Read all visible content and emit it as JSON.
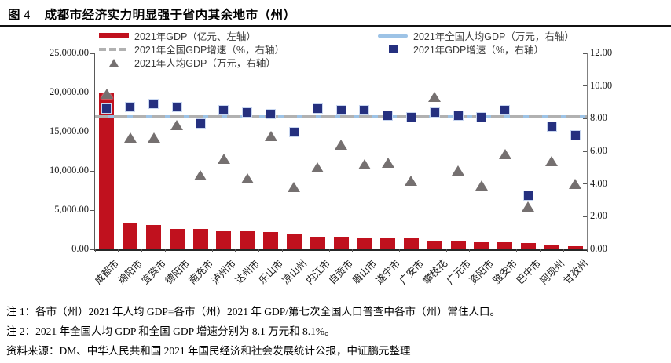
{
  "header": {
    "title_prefix": "图 4",
    "title": "成都市经济实力明显强于省内其余地市（州）"
  },
  "legend": {
    "left": [
      {
        "swatch": "bar",
        "label": "2021年GDP（亿元、左轴）"
      },
      {
        "swatch": "dashed",
        "label": "2021年全国GDP增速（%，右轴）"
      },
      {
        "swatch": "triangle",
        "label": "2021年人均GDP（万元，右轴）"
      }
    ],
    "right": [
      {
        "swatch": "line",
        "label": "2021年全国人均GDP（万元，右轴）"
      },
      {
        "swatch": "square",
        "label": "2021年GDP增速（%，右轴）"
      }
    ]
  },
  "chart_data": {
    "type": "bar",
    "title": "成都市经济实力明显强于省内其余地市（州）",
    "categories": [
      "成都市",
      "绵阳市",
      "宜宾市",
      "德阳市",
      "南充市",
      "泸州市",
      "达州市",
      "乐山市",
      "凉山州",
      "内江市",
      "自贡市",
      "眉山市",
      "遂宁市",
      "广安市",
      "攀枝花",
      "广元市",
      "资阳市",
      "雅安市",
      "巴中市",
      "阿坝州",
      "甘孜州"
    ],
    "series": [
      {
        "name": "2021年GDP（亿元、左轴）",
        "type": "bar",
        "axis": "left",
        "color": "#C0111E",
        "values": [
          19900,
          3350,
          3150,
          2650,
          2600,
          2400,
          2350,
          2200,
          1900,
          1620,
          1600,
          1550,
          1500,
          1420,
          1150,
          1100,
          920,
          900,
          760,
          460,
          440
        ]
      },
      {
        "name": "2021年GDP增速（%，右轴）",
        "type": "scatter-square",
        "axis": "right",
        "color": "#25307F",
        "values": [
          8.6,
          8.7,
          8.9,
          8.7,
          7.7,
          8.5,
          8.4,
          8.3,
          7.2,
          8.6,
          8.5,
          8.5,
          8.2,
          8.1,
          8.4,
          8.2,
          8.1,
          8.5,
          3.3,
          7.5,
          7.0
        ]
      },
      {
        "name": "2021年人均GDP（万元，右轴）",
        "type": "scatter-triangle",
        "axis": "right",
        "color": "#757070",
        "values": [
          9.5,
          6.8,
          6.8,
          7.6,
          4.5,
          5.5,
          4.3,
          6.9,
          3.8,
          5.0,
          6.4,
          5.2,
          5.3,
          4.2,
          9.3,
          4.8,
          3.9,
          5.8,
          2.6,
          5.4,
          4.0
        ]
      },
      {
        "name": "2021年全国人均GDP（万元，右轴）",
        "type": "hline",
        "axis": "right",
        "color": "#9DC3E6",
        "value": 8.1
      },
      {
        "name": "2021年全国GDP增速（%，右轴）",
        "type": "hline-dashed",
        "axis": "right",
        "color": "#B1B1B1",
        "value": 8.1
      }
    ],
    "left_axis": {
      "label": "",
      "min": 0,
      "max": 25000,
      "ticks": [
        "25,000.00",
        "20,000.00",
        "15,000.00",
        "10,000.00",
        "5,000.00",
        "0.00"
      ]
    },
    "right_axis": {
      "label": "",
      "min": 0,
      "max": 12,
      "ticks": [
        "12.00",
        "10.00",
        "8.00",
        "6.00",
        "4.00",
        "2.00",
        "0.00"
      ]
    },
    "grid": false,
    "legend_position": "top"
  },
  "notes": {
    "note1": "注 1：各市（州）2021 年人均 GDP=各市（州）2021 年 GDP/第七次全国人口普查中各市（州）常住人口。",
    "note2": "注 2：2021 年全国人均 GDP 和全国 GDP 增速分别为 8.1 万元和 8.1%。",
    "source": "资料来源：DM、中华人民共和国 2021 年国民经济和社会发展统计公报，中证鹏元整理"
  },
  "colors": {
    "bar_red": "#C0111E",
    "square_navy": "#25307F",
    "triangle_gray": "#757070",
    "national_pc_line_blue": "#9DC3E6",
    "national_growth_dash_gray": "#B1B1B1",
    "axis_text": "#1a1a1a"
  }
}
